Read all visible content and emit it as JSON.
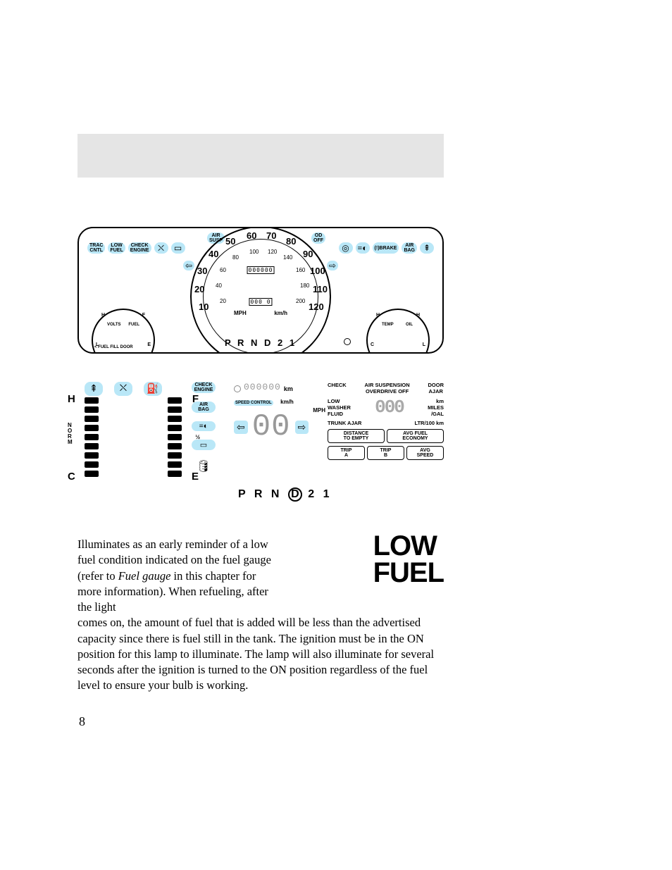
{
  "header": {
    "title_blank": ""
  },
  "dash1": {
    "top_row": {
      "air_susp": "AIR\nSUSP",
      "od_off": "OD\nOFF",
      "trac_cntl": "TRAC\nCNTL",
      "low_fuel": "LOW\nFUEL",
      "check_engine": "CHECK\nENGINE",
      "brake": "BRAKE",
      "air_bag": "AIR\nBAG",
      "icons": {
        "seatbelt": "⛌",
        "battery": "▭",
        "abs": "◎",
        "foglight": "≡◐",
        "brake_ex": "(!)",
        "temp": "⇞"
      }
    },
    "speedo": {
      "outer": [
        "10",
        "20",
        "30",
        "40",
        "50",
        "60",
        "70",
        "80",
        "90",
        "100",
        "110",
        "120"
      ],
      "inner": [
        "20",
        "40",
        "60",
        "80",
        "100",
        "120",
        "140",
        "160",
        "180",
        "200"
      ],
      "mph": "MPH",
      "kmh": "km/h",
      "odo_top": "000000",
      "odo_bot": "000 0",
      "left_arrow": "⇦",
      "right_arrow": "⇨"
    },
    "gauges": {
      "volts": "VOLTS",
      "fuel": "FUEL",
      "temp": "TEMP",
      "oil": "OIL",
      "H": "H",
      "F": "F",
      "L": "L",
      "E": "E",
      "C": "C"
    },
    "gear": "P R N D 2 1",
    "fuel_door": "< FUEL FILL DOOR"
  },
  "dash2": {
    "temp_gauge": {
      "top": "H",
      "mid": "N\nO\nR\nM",
      "bot": "C",
      "icon": "⇞"
    },
    "fuel_gauge": {
      "top": "F",
      "mid": "½",
      "bot": "E",
      "icon": "⛽"
    },
    "icon_row": {
      "temp": "⇞",
      "seatbelt": "⛌",
      "fuel": "⛽"
    },
    "label_col": {
      "check_engine": "CHECK\nENGINE",
      "air_bag": "AIR\nBAG",
      "foglight": "≡◐",
      "battery": "▭",
      "oil": "🛢"
    },
    "digital": {
      "odo": "000000",
      "km": "km",
      "speed_control": "SPEED CONTROL",
      "kmh": "km/h",
      "mph": "MPH",
      "big": "00",
      "left_arrow": "⇦",
      "right_arrow": "⇨"
    },
    "gear": {
      "pre": "P R N",
      "sel": "D",
      "post": "2 1"
    },
    "info": {
      "check": "CHECK",
      "air_susp": "AIR SUSPENSION",
      "overdrive": "OVERDRIVE OFF",
      "door_ajar": "DOOR\nAJAR",
      "low_washer": "LOW\nWASHER\nFLUID",
      "big_num": "000",
      "km": "km",
      "miles_gal": "MILES\n/GAL",
      "trunk": "TRUNK AJAR",
      "ltr": "LTR/100 km",
      "buttons1": [
        "DISTANCE\nTO EMPTY",
        "AVG FUEL\nECONOMY"
      ],
      "buttons2": [
        "TRIP\nA",
        "TRIP\nB",
        "AVG\nSPEED"
      ]
    }
  },
  "body": {
    "p1_a": "Illuminates as an early reminder of a low fuel condition indicated on the fuel gauge (refer to ",
    "p1_i": "Fuel gauge",
    "p1_b": " in this chapter for more information). When refueling, after the light",
    "p2": "comes on, the amount of fuel that is added will be less than the advertised capacity since there is fuel still in the tank. The ignition must be in the ON position for this lamp to illuminate. The lamp will also illuminate for several seconds after the ignition is turned to the ON position regardless of the fuel level to ensure your bulb is working."
  },
  "badge": {
    "line1": "LOW",
    "line2": "FUEL"
  },
  "page_number": "8",
  "colors": {
    "highlight": "#b9e7f7",
    "header_bg": "#e5e5e5",
    "text": "#000000",
    "bg": "#ffffff"
  }
}
